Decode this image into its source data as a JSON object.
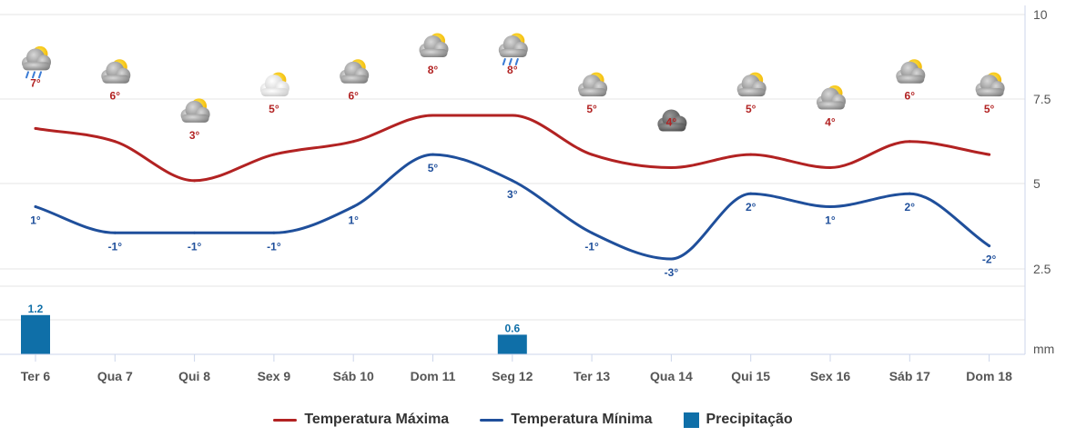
{
  "chart_data": {
    "type": "line",
    "categories": [
      "Ter 6",
      "Qua 7",
      "Qui 8",
      "Sex 9",
      "Sáb 10",
      "Dom 11",
      "Seg 12",
      "Ter 13",
      "Qua 14",
      "Qui 15",
      "Sex 16",
      "Sáb 17",
      "Dom 18"
    ],
    "y_ticks": [
      "10",
      "7.5",
      "5",
      "2.5"
    ],
    "unit_label": "mm",
    "series": [
      {
        "name": "Temperatura Máxima",
        "color": "#b22222",
        "values": [
          7,
          6,
          3,
          5,
          6,
          8,
          8,
          5,
          4,
          5,
          4,
          6,
          5
        ],
        "labels": [
          "7°",
          "6°",
          "3°",
          "5°",
          "6°",
          "8°",
          "8°",
          "5°",
          "4°",
          "5°",
          "4°",
          "6°",
          "5°"
        ]
      },
      {
        "name": "Temperatura Mínima",
        "color": "#1f4f9b",
        "values": [
          1,
          -1,
          -1,
          -1,
          1,
          5,
          3,
          -1,
          -3,
          2,
          1,
          2,
          -2
        ],
        "labels": [
          "1°",
          "-1°",
          "-1°",
          "-1°",
          "1°",
          "5°",
          "3°",
          "-1°",
          "-3°",
          "2°",
          "1°",
          "2°",
          "-2°"
        ]
      },
      {
        "name": "Precipitação",
        "type": "bar",
        "color": "#0f6fa8",
        "values": [
          1.2,
          0,
          0,
          0,
          0,
          0,
          0.6,
          0,
          0,
          0,
          0,
          0,
          0
        ],
        "labels": [
          "1.2",
          "",
          "",
          "",
          "",
          "",
          "0.6",
          "",
          "",
          "",
          "",
          "",
          ""
        ]
      }
    ],
    "weather_icons": [
      "sun-cloud-rain-icon",
      "cloud-icon",
      "cloud-icon",
      "sun-cloud-icon",
      "cloud-icon",
      "cloud-icon",
      "cloud-rain-icon",
      "cloud-icon",
      "dark-cloud-icon",
      "cloud-icon",
      "cloud-icon",
      "cloud-icon",
      "cloud-icon"
    ],
    "grid": true,
    "legend_position": "bottom"
  }
}
